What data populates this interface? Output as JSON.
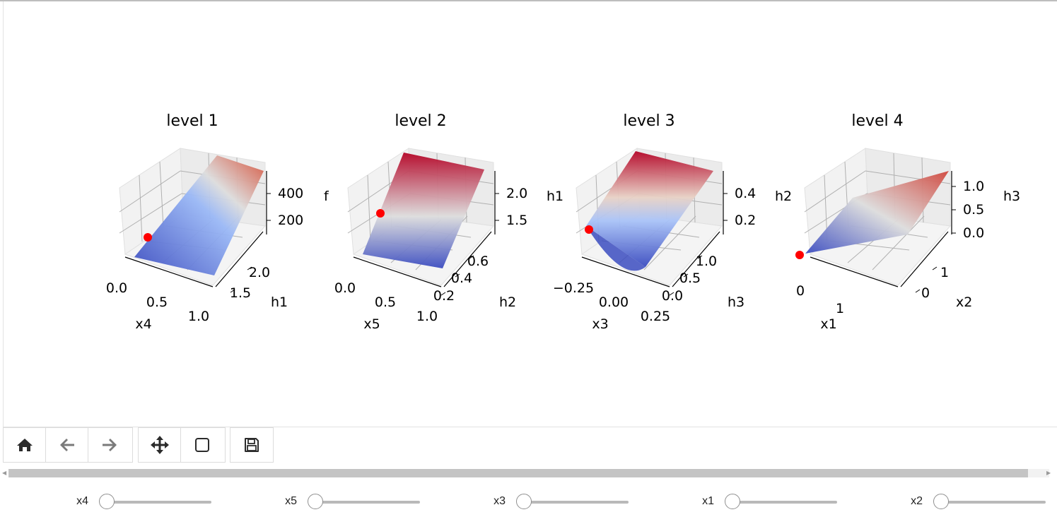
{
  "plots": [
    {
      "title": "level 1",
      "z_ticks": [
        "400",
        "200"
      ],
      "z_label": "f",
      "y_ticks": [
        "2.0",
        "1.5"
      ],
      "y_label": "h1",
      "x_ticks": [
        "0.0",
        "0.5",
        "1.0"
      ],
      "x_label": "x4"
    },
    {
      "title": "level 2",
      "z_ticks": [
        "2.0",
        "1.5"
      ],
      "z_label": "h1",
      "y_ticks": [
        "0.6",
        "0.4",
        "0.2"
      ],
      "y_label": "h2",
      "x_ticks": [
        "0.0",
        "0.5",
        "1.0"
      ],
      "x_label": "x5"
    },
    {
      "title": "level 3",
      "z_ticks": [
        "0.4",
        "0.2"
      ],
      "z_label": "h2",
      "y_ticks": [
        "1.0",
        "0.5",
        "0.0"
      ],
      "y_label": "h3",
      "x_ticks": [
        "−0.25",
        "0.00",
        "0.25"
      ],
      "x_label": "x3"
    },
    {
      "title": "level 4",
      "z_ticks": [
        "1.0",
        "0.5",
        "0.0"
      ],
      "z_label": "h3",
      "y_ticks": [
        "1",
        "0"
      ],
      "y_label": "x2",
      "x_ticks": [
        "0",
        "1"
      ],
      "x_label": "x1"
    }
  ],
  "colors": {
    "surface_low": "#3b4cc0",
    "surface_mid": "#dddddd",
    "surface_high": "#b40426",
    "marker": "#ff0000",
    "pane": "#f2f2f2",
    "grid": "#b0b0b0"
  },
  "toolbar": {
    "home": "home-icon",
    "back": "arrow-left-icon",
    "forward": "arrow-right-icon",
    "pan": "move-icon",
    "zoom": "square-icon",
    "save": "floppy-icon"
  },
  "sliders": [
    {
      "label": "x4",
      "value": 0.0
    },
    {
      "label": "x5",
      "value": 0.0
    },
    {
      "label": "x3",
      "value": 0.0
    },
    {
      "label": "x1",
      "value": 0.0
    },
    {
      "label": "x2",
      "value": 0.0
    }
  ]
}
